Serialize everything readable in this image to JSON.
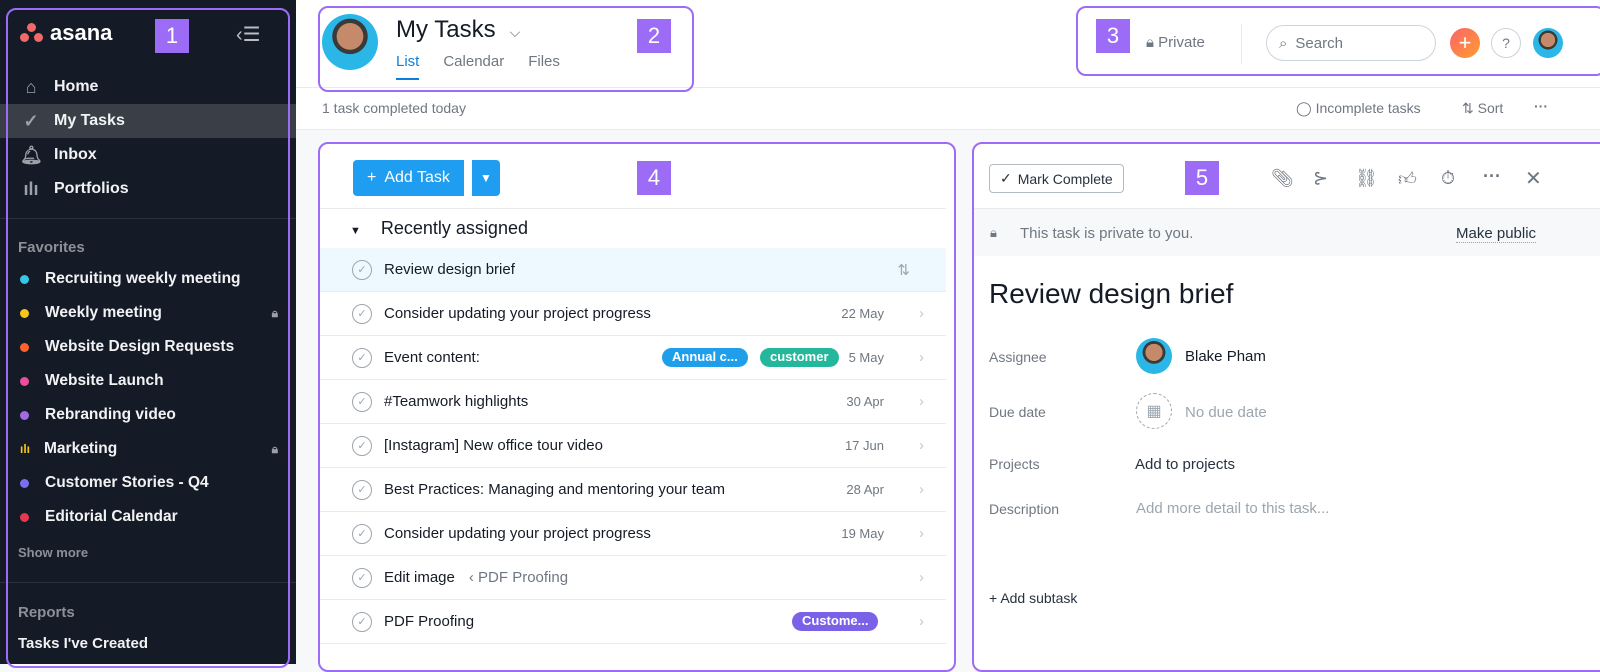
{
  "sidebar": {
    "logo": "asana",
    "nav": [
      {
        "label": "Home",
        "icon": "home-icon"
      },
      {
        "label": "My Tasks",
        "icon": "check-circle-icon",
        "active": true
      },
      {
        "label": "Inbox",
        "icon": "bell-icon"
      },
      {
        "label": "Portfolios",
        "icon": "bar-chart-icon"
      }
    ],
    "favorites_title": "Favorites",
    "favorites": [
      {
        "label": "Recruiting weekly meeting",
        "color": "#37c5e8"
      },
      {
        "label": "Weekly meeting",
        "color": "#f8c518",
        "locked": true
      },
      {
        "label": "Website Design Requests",
        "color": "#fd612c"
      },
      {
        "label": "Website Launch",
        "color": "#ea4e9d"
      },
      {
        "label": "Rebranding video",
        "color": "#a36ae6"
      },
      {
        "label": "Marketing",
        "color": "#f8c518",
        "locked": true,
        "bars": true
      },
      {
        "label": "Customer Stories - Q4",
        "color": "#7a6ff0"
      },
      {
        "label": "Editorial Calendar",
        "color": "#e8384f"
      }
    ],
    "show_more": "Show more",
    "reports_title": "Reports",
    "reports": [
      "Tasks I've Created"
    ]
  },
  "header": {
    "title": "My Tasks",
    "tabs": [
      "List",
      "Calendar",
      "Files"
    ],
    "active_tab": "List",
    "private": "Private",
    "search_placeholder": "Search",
    "help": "?"
  },
  "subheader": {
    "status": "1 task completed today",
    "filter": "Incomplete tasks",
    "sort": "Sort",
    "more": "···"
  },
  "list": {
    "add_task": "Add Task",
    "section": "Recently assigned",
    "tasks": [
      {
        "name": "Review design brief",
        "date": "",
        "selected": true
      },
      {
        "name": "Consider updating your project progress",
        "date": "22 May"
      },
      {
        "name": "Event content:",
        "date": "5 May",
        "tags": [
          {
            "label": "Annual c...",
            "color": "#1f9ee9"
          },
          {
            "label": "customer",
            "color": "#25b79b"
          }
        ]
      },
      {
        "name": "#Teamwork highlights",
        "date": "30 Apr"
      },
      {
        "name": "[Instagram] New office tour video",
        "date": "17 Jun"
      },
      {
        "name": "Best Practices: Managing and mentoring your team",
        "date": "28 Apr"
      },
      {
        "name": "Consider updating your project progress",
        "date": "19 May"
      },
      {
        "name": "Edit image",
        "project": "‹ PDF Proofing",
        "date": ""
      },
      {
        "name": "PDF Proofing",
        "date": "",
        "tags": [
          {
            "label": "Custome...",
            "color": "#7b61e8"
          }
        ]
      }
    ]
  },
  "detail": {
    "mark_complete": "Mark Complete",
    "private_notice": "This task is private to you.",
    "make_public": "Make public",
    "title": "Review design brief",
    "assignee_label": "Assignee",
    "assignee": "Blake Pham",
    "due_label": "Due date",
    "due": "No due date",
    "projects_label": "Projects",
    "projects": "Add to projects",
    "description_label": "Description",
    "description_placeholder": "Add more detail to this task...",
    "add_subtask": "Add subtask"
  },
  "annotations": [
    "1",
    "2",
    "3",
    "4",
    "5"
  ],
  "colors": {
    "accent": "#1e9df1",
    "annotation": "#9d6cf7",
    "sidebar": "#151b26"
  }
}
